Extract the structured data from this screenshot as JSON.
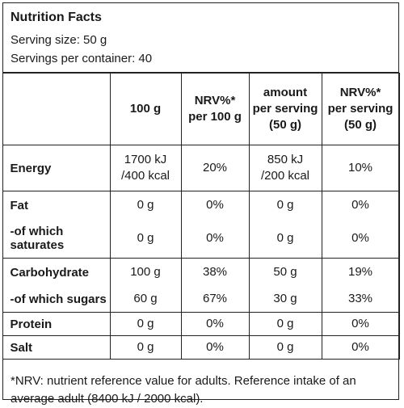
{
  "header": {
    "title": "Nutrition Facts",
    "serving_size": "Serving size: 50 g",
    "servings_per_container": "Servings per container: 40"
  },
  "columns": {
    "c1": [
      "100 g"
    ],
    "c2": [
      "NRV%*",
      "per 100 g"
    ],
    "c3": [
      "amount",
      "per serving",
      "(50 g)"
    ],
    "c4": [
      "NRV%*",
      "per serving",
      "(50 g)"
    ]
  },
  "rows": {
    "energy": {
      "label": "Energy",
      "v1": [
        "1700 kJ",
        "/400 kcal"
      ],
      "v2": "20%",
      "v3": [
        "850 kJ",
        "/200 kcal"
      ],
      "v4": "10%"
    },
    "fat": {
      "label": "Fat",
      "v1": "0 g",
      "v2": "0%",
      "v3": "0 g",
      "v4": "0%"
    },
    "saturates": {
      "label": [
        "-of which",
        "saturates"
      ],
      "v1": "0 g",
      "v2": "0%",
      "v3": "0 g",
      "v4": "0%"
    },
    "carbohydrate": {
      "label": "Carbohydrate",
      "v1": "100 g",
      "v2": "38%",
      "v3": "50 g",
      "v4": "19%"
    },
    "sugars": {
      "label": "-of which sugars",
      "v1": "60 g",
      "v2": "67%",
      "v3": "30 g",
      "v4": "33%"
    },
    "protein": {
      "label": "Protein",
      "v1": "0 g",
      "v2": "0%",
      "v3": "0 g",
      "v4": "0%"
    },
    "salt": {
      "label": "Salt",
      "v1": "0 g",
      "v2": "0%",
      "v3": "0 g",
      "v4": "0%"
    }
  },
  "footnote": "*NRV: nutrient reference value for adults. Reference intake of an average adult (8400 kJ / 2000 kcal)."
}
